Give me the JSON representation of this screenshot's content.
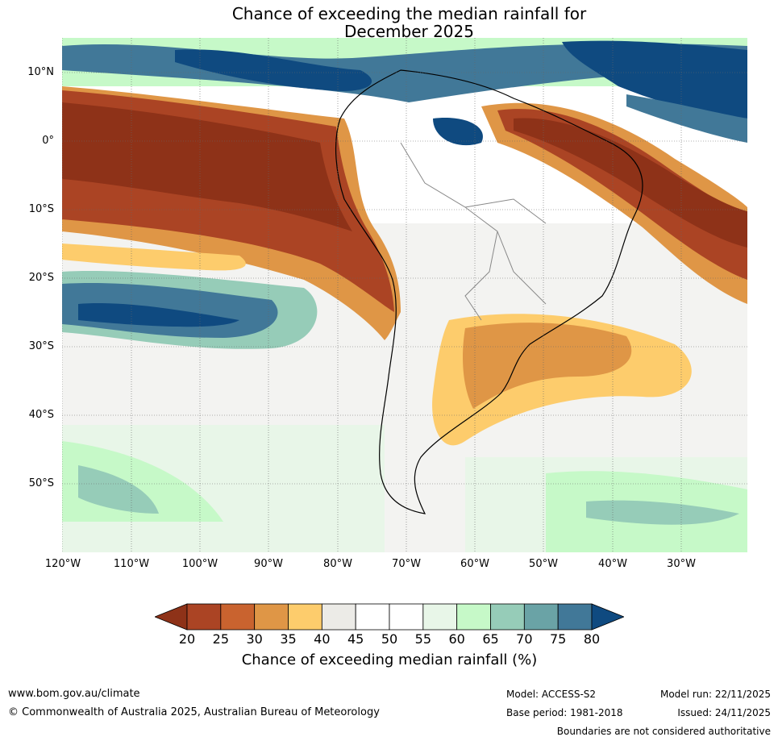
{
  "title": {
    "line1": "Chance of exceeding the median rainfall for",
    "line2": "December 2025"
  },
  "map": {
    "region": "South America and surrounding oceans",
    "lat_labels": [
      "10°N",
      "0°",
      "10°S",
      "20°S",
      "30°S",
      "40°S",
      "50°S"
    ],
    "lon_labels": [
      "120°W",
      "110°W",
      "100°W",
      "90°W",
      "80°W",
      "70°W",
      "60°W",
      "50°W",
      "40°W",
      "30°W"
    ]
  },
  "colorbar": {
    "ticks": [
      "20",
      "25",
      "30",
      "35",
      "40",
      "45",
      "50",
      "55",
      "60",
      "65",
      "70",
      "75",
      "80"
    ],
    "colors": [
      "#8e3218",
      "#ab4424",
      "#c9632f",
      "#df9646",
      "#fdcc6c",
      "#ecebe7",
      "#ffffff",
      "#ffffff",
      "#e8f6e8",
      "#c6f9c8",
      "#96ccb8",
      "#6aa3a6",
      "#417898",
      "#0f4a80"
    ],
    "label": "Chance of exceeding median rainfall (%)"
  },
  "footer": {
    "url": "www.bom.gov.au/climate",
    "copyright": "© Commonwealth of Australia 2025, Australian Bureau of Meteorology",
    "model": "Model: ACCESS-S2",
    "base_period": "Base period: 1981-2018",
    "model_run": "Model run: 22/11/2025",
    "issued": "Issued: 24/11/2025",
    "disclaimer": "Boundaries are not considered authoritative"
  }
}
